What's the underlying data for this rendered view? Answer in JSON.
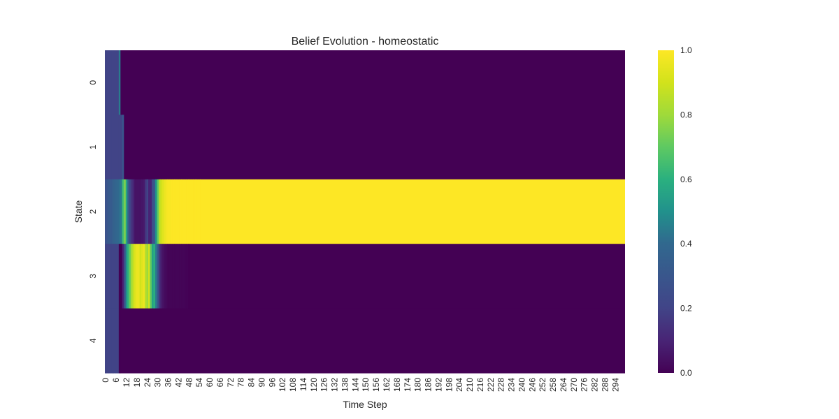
{
  "chart_data": {
    "type": "heatmap",
    "title": "Belief Evolution - homeostatic",
    "xlabel": "Time Step",
    "ylabel": "State",
    "colormap": "viridis",
    "grid": false,
    "n_steps": 300,
    "x_tick_labels": [
      "0",
      "6",
      "12",
      "18",
      "24",
      "30",
      "36",
      "42",
      "48",
      "54",
      "60",
      "66",
      "72",
      "78",
      "84",
      "90",
      "96",
      "102",
      "108",
      "114",
      "120",
      "126",
      "132",
      "138",
      "144",
      "150",
      "156",
      "162",
      "168",
      "174",
      "180",
      "186",
      "192",
      "198",
      "204",
      "210",
      "216",
      "222",
      "228",
      "234",
      "240",
      "246",
      "252",
      "258",
      "264",
      "270",
      "276",
      "282",
      "288",
      "294"
    ],
    "y_tick_labels": [
      "0",
      "1",
      "2",
      "3",
      "4"
    ],
    "colorbar": {
      "vmin": 0.0,
      "vmax": 1.0,
      "tick_labels": [
        "0.0",
        "0.2",
        "0.4",
        "0.6",
        "0.8",
        "1.0"
      ]
    },
    "states": [
      {
        "name": "0",
        "early_values": [
          0.2,
          0.2,
          0.2,
          0.2,
          0.2,
          0.2,
          0.2,
          0.2,
          0.45,
          0.0
        ],
        "steady": 0.0
      },
      {
        "name": "1",
        "early_values": [
          0.2,
          0.2,
          0.2,
          0.2,
          0.2,
          0.2,
          0.2,
          0.2,
          0.2,
          0.2,
          0.3,
          0.0
        ],
        "steady": 0.0
      },
      {
        "name": "2",
        "early_values": [
          0.28,
          0.3,
          0.32,
          0.33,
          0.35,
          0.37,
          0.39,
          0.4,
          0.42,
          0.45,
          0.65,
          0.75,
          0.55,
          0.35,
          0.2,
          0.15,
          0.1,
          0.05,
          0.05,
          0.05,
          0.05,
          0.06,
          0.07,
          0.15,
          0.2,
          0.1,
          0.1,
          0.25,
          0.3,
          0.5,
          0.7,
          0.85,
          0.9,
          0.93,
          0.96,
          0.98,
          0.99,
          0.99,
          1.0,
          1.0,
          1.0,
          1.0,
          1.0,
          1.0,
          1.0,
          1.0,
          1.0,
          1.0,
          1.0,
          1.0,
          1.0,
          1.0,
          1.0,
          1.0,
          1.0
        ],
        "steady": 1.0
      },
      {
        "name": "3",
        "early_values": [
          0.2,
          0.2,
          0.2,
          0.2,
          0.2,
          0.2,
          0.2,
          0.2,
          0.0,
          0.0,
          0.1,
          0.3,
          0.5,
          0.62,
          0.72,
          0.82,
          0.88,
          0.93,
          0.96,
          0.96,
          0.9,
          0.93,
          0.96,
          0.85,
          0.8,
          0.9,
          0.7,
          0.55,
          0.6,
          0.45,
          0.3,
          0.15,
          0.08,
          0.05,
          0.03,
          0.02,
          0.01,
          0.01,
          0.01,
          0.01,
          0.01,
          0.01,
          0.01,
          0.01,
          0.01,
          0.01,
          0.005,
          0.005,
          0.0
        ],
        "steady": 0.0
      },
      {
        "name": "4",
        "early_values": [
          0.2,
          0.2,
          0.2,
          0.2,
          0.2,
          0.2,
          0.2,
          0.2,
          0.0
        ],
        "steady": 0.0
      }
    ]
  }
}
